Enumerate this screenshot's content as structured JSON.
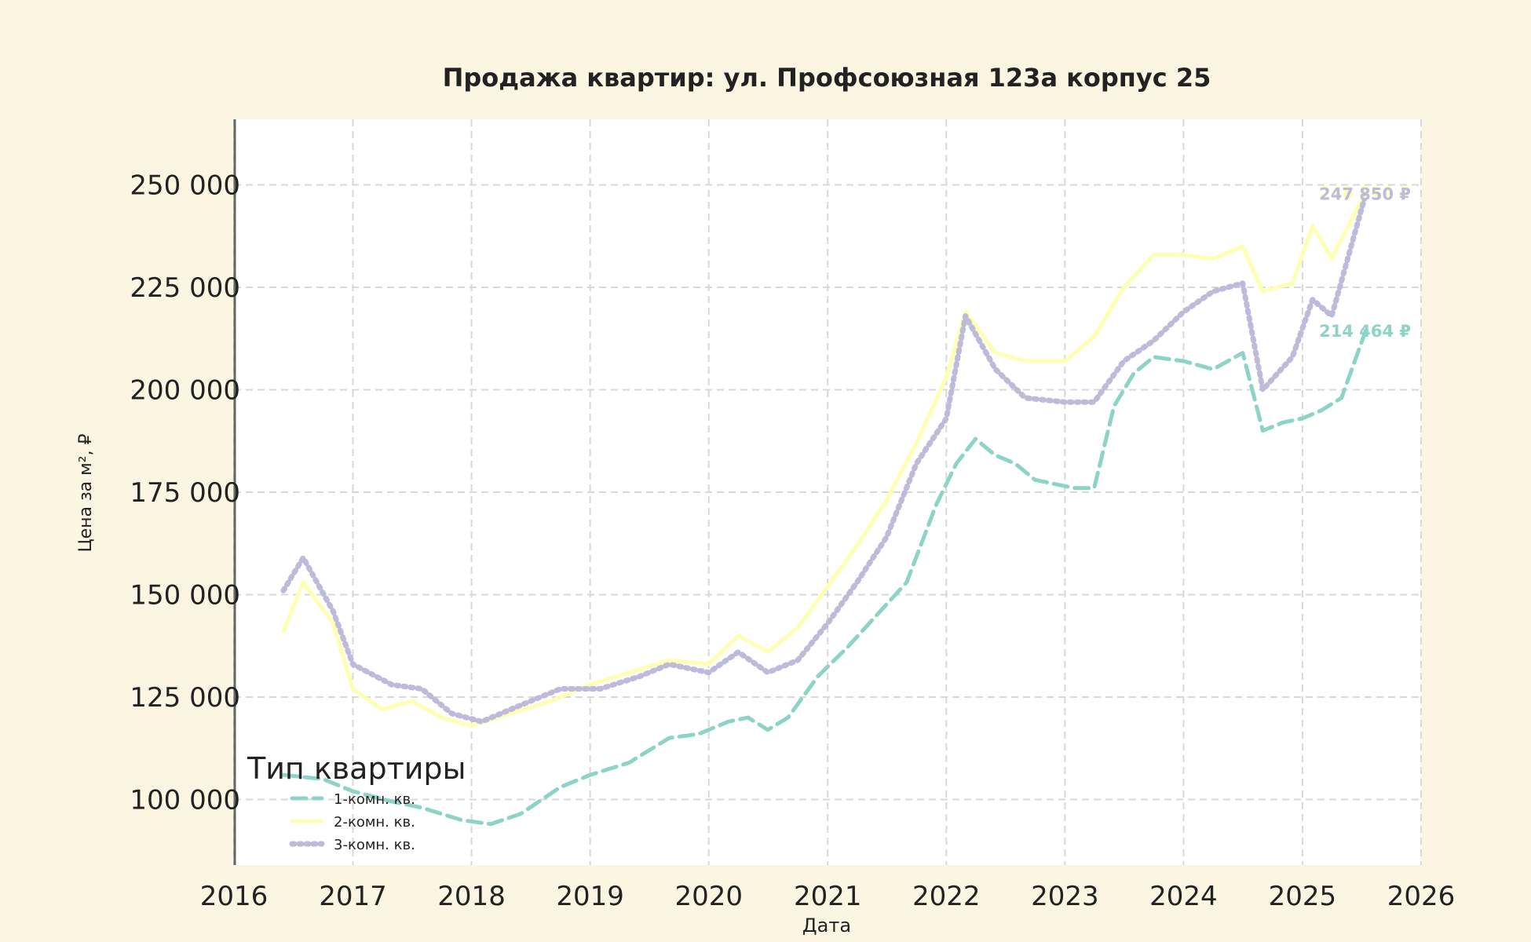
{
  "chart_data": {
    "type": "line",
    "title": "Продажа квартир: ул. Профсоюзная 123а корпус 25",
    "xlabel": "Дата",
    "ylabel": "Цена за м², ₽",
    "xlim": [
      "2016-01-01",
      "2026-01-01"
    ],
    "ylim": [
      84000,
      266000
    ],
    "x_ticks": [
      "2016",
      "2017",
      "2018",
      "2019",
      "2020",
      "2021",
      "2022",
      "2023",
      "2024",
      "2025",
      "2026"
    ],
    "y_ticks": [
      100000,
      125000,
      150000,
      175000,
      200000,
      225000,
      250000
    ],
    "y_tick_labels": [
      "100 000",
      "125 000",
      "150 000",
      "175 000",
      "200 000",
      "225 000",
      "250 000"
    ],
    "grid": true,
    "legend_position": "bottom-left",
    "legend_title": "Тип квартиры",
    "colors": {
      "background": "#fcf5e2",
      "plot_bg": "#ffffff",
      "grid": "#d8d8d8",
      "text": "#222222"
    },
    "series": [
      {
        "name": "1-комн. кв.",
        "color": "#8dd3c7",
        "style": "dashed",
        "end_label": "214 464 ₽",
        "points": [
          [
            "2016-06-01",
            106000
          ],
          [
            "2016-10-01",
            105000
          ],
          [
            "2017-01-01",
            102000
          ],
          [
            "2017-05-01",
            99500
          ],
          [
            "2017-08-01",
            98000
          ],
          [
            "2017-12-01",
            95000
          ],
          [
            "2018-03-01",
            94000
          ],
          [
            "2018-06-01",
            96500
          ],
          [
            "2018-10-01",
            103000
          ],
          [
            "2019-01-01",
            106000
          ],
          [
            "2019-05-01",
            109000
          ],
          [
            "2019-09-01",
            115000
          ],
          [
            "2019-12-01",
            116000
          ],
          [
            "2020-03-01",
            119000
          ],
          [
            "2020-05-01",
            120000
          ],
          [
            "2020-07-01",
            117000
          ],
          [
            "2020-09-01",
            120000
          ],
          [
            "2020-12-01",
            130000
          ],
          [
            "2021-03-01",
            137000
          ],
          [
            "2021-06-01",
            145000
          ],
          [
            "2021-09-01",
            153000
          ],
          [
            "2021-12-01",
            172000
          ],
          [
            "2022-02-01",
            182000
          ],
          [
            "2022-04-01",
            188000
          ],
          [
            "2022-06-01",
            184000
          ],
          [
            "2022-08-01",
            182000
          ],
          [
            "2022-10-01",
            178000
          ],
          [
            "2022-12-01",
            177000
          ],
          [
            "2023-02-01",
            176000
          ],
          [
            "2023-04-01",
            176000
          ],
          [
            "2023-06-01",
            196000
          ],
          [
            "2023-08-01",
            204000
          ],
          [
            "2023-10-01",
            208000
          ],
          [
            "2024-01-01",
            207000
          ],
          [
            "2024-04-01",
            205000
          ],
          [
            "2024-07-01",
            209000
          ],
          [
            "2024-09-01",
            190000
          ],
          [
            "2024-11-01",
            192000
          ],
          [
            "2025-01-01",
            193000
          ],
          [
            "2025-03-01",
            195000
          ],
          [
            "2025-05-01",
            198000
          ],
          [
            "2025-07-15",
            214464
          ]
        ]
      },
      {
        "name": "2-комн. кв.",
        "color": "#ffffb3",
        "style": "solid",
        "end_label": "248 316 ₽",
        "points": [
          [
            "2016-06-01",
            141000
          ],
          [
            "2016-08-01",
            153000
          ],
          [
            "2016-11-01",
            143000
          ],
          [
            "2017-01-01",
            127000
          ],
          [
            "2017-04-01",
            122000
          ],
          [
            "2017-07-01",
            124000
          ],
          [
            "2017-10-01",
            120000
          ],
          [
            "2018-01-01",
            118000
          ],
          [
            "2018-05-01",
            121000
          ],
          [
            "2018-09-01",
            124000
          ],
          [
            "2019-01-01",
            128000
          ],
          [
            "2019-05-01",
            131000
          ],
          [
            "2019-09-01",
            134000
          ],
          [
            "2020-01-01",
            133000
          ],
          [
            "2020-04-01",
            140000
          ],
          [
            "2020-07-01",
            136000
          ],
          [
            "2020-10-01",
            142000
          ],
          [
            "2021-01-01",
            152000
          ],
          [
            "2021-04-01",
            162000
          ],
          [
            "2021-07-01",
            173000
          ],
          [
            "2021-10-01",
            187000
          ],
          [
            "2022-01-01",
            203000
          ],
          [
            "2022-03-01",
            219000
          ],
          [
            "2022-06-01",
            209000
          ],
          [
            "2022-09-01",
            207000
          ],
          [
            "2023-01-01",
            207000
          ],
          [
            "2023-04-01",
            213000
          ],
          [
            "2023-07-01",
            225000
          ],
          [
            "2023-10-01",
            233000
          ],
          [
            "2024-01-01",
            233000
          ],
          [
            "2024-04-01",
            232000
          ],
          [
            "2024-07-01",
            235000
          ],
          [
            "2024-09-01",
            224000
          ],
          [
            "2024-12-01",
            226000
          ],
          [
            "2025-02-01",
            240000
          ],
          [
            "2025-04-01",
            232000
          ],
          [
            "2025-07-15",
            248316
          ]
        ]
      },
      {
        "name": "3-комн. кв.",
        "color": "#bebada",
        "style": "dotted",
        "end_label": "247 850 ₽",
        "points": [
          [
            "2016-06-01",
            151000
          ],
          [
            "2016-08-01",
            159000
          ],
          [
            "2016-11-01",
            146000
          ],
          [
            "2017-01-01",
            133000
          ],
          [
            "2017-05-01",
            128000
          ],
          [
            "2017-08-01",
            127000
          ],
          [
            "2017-11-01",
            121000
          ],
          [
            "2018-02-01",
            119000
          ],
          [
            "2018-06-01",
            123000
          ],
          [
            "2018-10-01",
            127000
          ],
          [
            "2019-02-01",
            127000
          ],
          [
            "2019-06-01",
            130000
          ],
          [
            "2019-09-01",
            133000
          ],
          [
            "2020-01-01",
            131000
          ],
          [
            "2020-04-01",
            136000
          ],
          [
            "2020-07-01",
            131000
          ],
          [
            "2020-10-01",
            134000
          ],
          [
            "2021-01-01",
            143000
          ],
          [
            "2021-04-01",
            153000
          ],
          [
            "2021-07-01",
            164000
          ],
          [
            "2021-10-01",
            182000
          ],
          [
            "2022-01-01",
            193000
          ],
          [
            "2022-03-01",
            218000
          ],
          [
            "2022-06-01",
            205000
          ],
          [
            "2022-09-01",
            198000
          ],
          [
            "2023-01-01",
            197000
          ],
          [
            "2023-04-01",
            197000
          ],
          [
            "2023-07-01",
            207000
          ],
          [
            "2023-10-01",
            212000
          ],
          [
            "2024-01-01",
            219000
          ],
          [
            "2024-04-01",
            224000
          ],
          [
            "2024-07-01",
            226000
          ],
          [
            "2024-09-01",
            200000
          ],
          [
            "2024-12-01",
            208000
          ],
          [
            "2025-02-01",
            222000
          ],
          [
            "2025-04-01",
            218000
          ],
          [
            "2025-07-15",
            247850
          ]
        ]
      }
    ]
  }
}
